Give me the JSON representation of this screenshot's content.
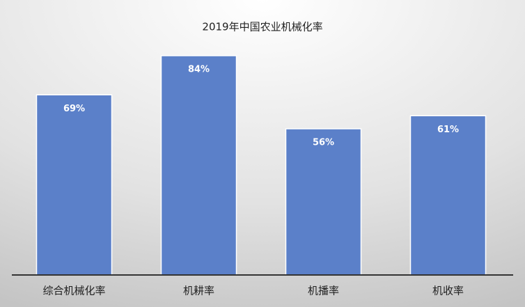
{
  "chart_data": {
    "type": "bar",
    "title": "2019年中国农业机械化率",
    "categories": [
      "综合机械化率",
      "机耕率",
      "机播率",
      "机收率"
    ],
    "values": [
      69,
      84,
      56,
      61
    ],
    "value_labels": [
      "69%",
      "84%",
      "56%",
      "61%"
    ],
    "color": "#5b80c9"
  }
}
